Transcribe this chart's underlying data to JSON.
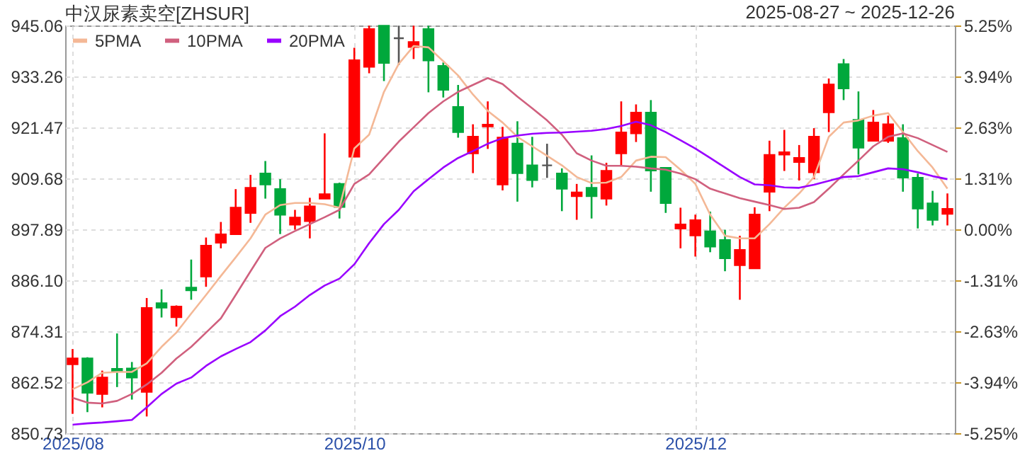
{
  "chart_data": {
    "type": "candlestick",
    "title": "中汉尿素卖空[ZHSUR]",
    "subtitle": "2025-08-27 ~ 2025-12-26",
    "categories": [
      "2025/08",
      null,
      null,
      null,
      null,
      null,
      null,
      null,
      null,
      null,
      null,
      null,
      null,
      null,
      null,
      null,
      null,
      null,
      null,
      "2025/10",
      null,
      null,
      null,
      null,
      null,
      null,
      null,
      null,
      null,
      null,
      null,
      null,
      null,
      null,
      null,
      null,
      null,
      null,
      null,
      null,
      null,
      null,
      "2025/12",
      null,
      null,
      null,
      null,
      null,
      null,
      null,
      null,
      null,
      null,
      null,
      null,
      null,
      null,
      null,
      null,
      null
    ],
    "ohlc": [
      [
        866.7,
        870.2,
        855.2,
        868.0
      ],
      [
        868.0,
        868.3,
        855.6,
        860.1
      ],
      [
        859.8,
        865.2,
        856.7,
        863.6
      ],
      [
        865.6,
        873.8,
        861.4,
        865.1
      ],
      [
        865.7,
        867.2,
        858.5,
        863.6
      ],
      [
        860.3,
        882.0,
        854.6,
        879.7
      ],
      [
        880.8,
        884.0,
        877.5,
        879.8
      ],
      [
        877.6,
        880.3,
        875.4,
        880.0
      ],
      [
        884.4,
        890.9,
        881.6,
        883.8
      ],
      [
        887.0,
        896.0,
        884.6,
        894.1
      ],
      [
        894.8,
        899.6,
        893.5,
        896.7
      ],
      [
        896.8,
        907.2,
        896.8,
        902.9
      ],
      [
        901.7,
        910.5,
        899.4,
        907.5
      ],
      [
        910.8,
        913.7,
        905.0,
        908.3
      ],
      [
        907.2,
        909.5,
        896.8,
        901.3
      ],
      [
        899.0,
        902.4,
        897.8,
        900.6
      ],
      [
        899.8,
        905.2,
        895.8,
        903.2
      ],
      [
        905.0,
        920.1,
        905.0,
        906.0
      ],
      [
        908.4,
        908.7,
        900.4,
        903.1
      ],
      [
        914.7,
        939.9,
        914.7,
        937.0
      ],
      [
        935.5,
        945.0,
        934.0,
        944.2
      ],
      [
        945.0,
        945.0,
        932.2,
        936.4
      ],
      [
        942.1,
        945.0,
        935.9,
        942.1
      ],
      [
        940.1,
        945.0,
        937.3,
        941.2
      ],
      [
        944.2,
        945.0,
        929.6,
        937.0
      ],
      [
        935.7,
        936.5,
        928.4,
        930.2
      ],
      [
        926.2,
        931.3,
        919.1,
        920.4
      ],
      [
        915.5,
        922.2,
        910.9,
        919.3
      ],
      [
        921.7,
        927.5,
        916.5,
        922.1
      ],
      [
        908.3,
        921.6,
        906.9,
        919.1
      ],
      [
        917.7,
        922.9,
        904.3,
        910.9
      ],
      [
        912.7,
        919.3,
        907.6,
        909.3
      ],
      [
        912.7,
        917.7,
        909.8,
        912.7
      ],
      [
        910.8,
        912.0,
        902.1,
        907.3
      ],
      [
        905.6,
        908.4,
        900.1,
        906.4
      ],
      [
        907.5,
        915.0,
        900.4,
        905.6
      ],
      [
        905.0,
        913.3,
        903.4,
        911.4
      ],
      [
        915.5,
        927.5,
        912.6,
        920.3
      ],
      [
        920.1,
        926.8,
        918.1,
        924.9
      ],
      [
        924.9,
        927.8,
        906.6,
        911.5
      ],
      [
        912.1,
        912.1,
        901.7,
        904.0
      ],
      [
        898.1,
        902.9,
        893.5,
        899.0
      ],
      [
        896.5,
        901.3,
        891.6,
        900.0
      ],
      [
        897.4,
        902.0,
        892.6,
        893.9
      ],
      [
        895.4,
        897.8,
        888.2,
        891.2
      ],
      [
        889.6,
        896.4,
        881.6,
        893.1
      ],
      [
        888.9,
        903.0,
        888.9,
        901.3
      ],
      [
        906.6,
        918.4,
        902.1,
        915.1
      ],
      [
        915.2,
        920.9,
        911.4,
        915.7
      ],
      [
        913.5,
        917.4,
        909.2,
        914.4
      ],
      [
        911.1,
        921.3,
        909.5,
        919.3
      ],
      [
        925.0,
        932.8,
        920.4,
        931.4
      ],
      [
        936.1,
        937.3,
        927.8,
        930.5
      ],
      [
        923.2,
        929.8,
        910.6,
        916.8
      ],
      [
        918.4,
        925.5,
        918.4,
        922.6
      ],
      [
        918.4,
        924.2,
        917.9,
        922.2
      ],
      [
        919.0,
        922.2,
        906.6,
        909.9
      ],
      [
        909.8,
        910.8,
        898.1,
        902.7
      ],
      [
        903.9,
        906.8,
        898.8,
        900.1
      ],
      [
        901.5,
        906.2,
        898.8,
        902.6
      ]
    ],
    "colors": [
      "#ff0000",
      "#00a83c",
      "#ff0000",
      "#00a83c",
      "#00a83c",
      "#ff0000",
      "#00a83c",
      "#ff0000",
      "#00a83c",
      "#ff0000",
      "#ff0000",
      "#ff0000",
      "#ff0000",
      "#00a83c",
      "#00a83c",
      "#ff0000",
      "#ff0000",
      "#ff0000",
      "#00a83c",
      "#ff0000",
      "#ff0000",
      "#00a83c",
      "#555555",
      "#ff0000",
      "#00a83c",
      "#00a83c",
      "#00a83c",
      "#ff0000",
      "#ff0000",
      "#ff0000",
      "#00a83c",
      "#00a83c",
      "#555555",
      "#00a83c",
      "#ff0000",
      "#00a83c",
      "#ff0000",
      "#ff0000",
      "#ff0000",
      "#00a83c",
      "#00a83c",
      "#ff0000",
      "#ff0000",
      "#00a83c",
      "#00a83c",
      "#ff0000",
      "#ff0000",
      "#ff0000",
      "#ff0000",
      "#ff0000",
      "#ff0000",
      "#ff0000",
      "#00a83c",
      "#00a83c",
      "#ff0000",
      "#ff0000",
      "#00a83c",
      "#00a83c",
      "#00a83c",
      "#ff0000"
    ],
    "series": [
      {
        "name": "5PMA",
        "type": "line",
        "color": "#f4b896",
        "values": [
          860.9,
          862.5,
          864.7,
          864.9,
          864.9,
          866.9,
          870.7,
          874.0,
          878.4,
          882.7,
          887.1,
          891.4,
          895.8,
          901.3,
          903.5,
          904.0,
          904.0,
          903.7,
          902.9,
          916.6,
          919.8,
          929.7,
          936.2,
          940.3,
          940.0,
          936.8,
          933.5,
          929.1,
          925.3,
          922.6,
          919.3,
          917.1,
          914.9,
          912.7,
          910.0,
          908.6,
          908.7,
          910.0,
          913.8,
          914.7,
          914.6,
          911.7,
          908.4,
          901.3,
          896.4,
          895.8,
          895.8,
          899.1,
          902.9,
          906.2,
          910.0,
          919.3,
          922.6,
          923.1,
          924.2,
          924.8,
          920.4,
          916.0,
          912.2,
          907.3
        ]
      },
      {
        "name": "10PMA",
        "type": "line",
        "color": "#d0607e",
        "values": [
          858.9,
          857.8,
          857.6,
          858.2,
          859.8,
          862.0,
          864.7,
          868.0,
          870.7,
          874.0,
          877.3,
          882.7,
          888.2,
          893.6,
          895.8,
          897.5,
          899.1,
          900.7,
          902.4,
          908.4,
          910.6,
          914.4,
          918.2,
          921.5,
          924.8,
          927.5,
          929.7,
          931.3,
          932.9,
          931.5,
          928.6,
          925.9,
          923.1,
          919.8,
          915.5,
          913.8,
          912.6,
          912.6,
          912.4,
          912.0,
          911.7,
          910.8,
          909.5,
          907.3,
          906.2,
          905.1,
          904.3,
          903.5,
          902.6,
          902.9,
          904.2,
          907.3,
          910.6,
          913.8,
          917.1,
          919.3,
          920.1,
          919.0,
          917.4,
          915.8
        ]
      },
      {
        "name": "20PMA",
        "type": "line",
        "color": "#9900ff",
        "values": [
          852.7,
          853.0,
          853.2,
          853.5,
          853.8,
          856.7,
          859.8,
          862.2,
          863.6,
          866.3,
          868.5,
          870.2,
          871.8,
          874.5,
          877.8,
          880.0,
          882.7,
          884.9,
          886.5,
          889.8,
          894.7,
          899.1,
          902.4,
          906.7,
          909.5,
          912.2,
          914.4,
          916.0,
          917.7,
          919.0,
          919.6,
          920.0,
          920.2,
          920.3,
          920.5,
          920.7,
          921.1,
          921.8,
          922.8,
          922.0,
          920.4,
          918.5,
          916.6,
          914.4,
          912.2,
          910.0,
          908.3,
          908.1,
          907.6,
          907.5,
          908.2,
          909.1,
          910.0,
          910.2,
          911.1,
          912.0,
          911.8,
          911.1,
          910.2,
          909.5
        ]
      }
    ],
    "ylim": [
      850.73,
      945.06
    ],
    "yticks": [
      850.73,
      862.52,
      874.31,
      {
        "value": 886.1,
        "label": "886.10"
      },
      897.89,
      909.68,
      921.47,
      933.26,
      945.06
    ],
    "y2lim": [
      -5.25,
      5.25
    ],
    "y2ticks": [
      {
        "value": -5.25,
        "label": "-5.25%"
      },
      {
        "value": -3.94,
        "label": "-3.94%"
      },
      {
        "value": -2.63,
        "label": "-2.63%"
      },
      {
        "value": -1.31,
        "label": "-1.31%"
      },
      {
        "value": 0,
        "label": "0.00%"
      },
      {
        "value": 1.31,
        "label": "1.31%"
      },
      {
        "value": 2.63,
        "label": "2.63%"
      },
      {
        "value": 3.94,
        "label": "3.94%"
      },
      {
        "value": 5.25,
        "label": "5.25%"
      }
    ],
    "grid": true,
    "legend": "top left",
    "marker": "none",
    "line_style": "solid"
  }
}
